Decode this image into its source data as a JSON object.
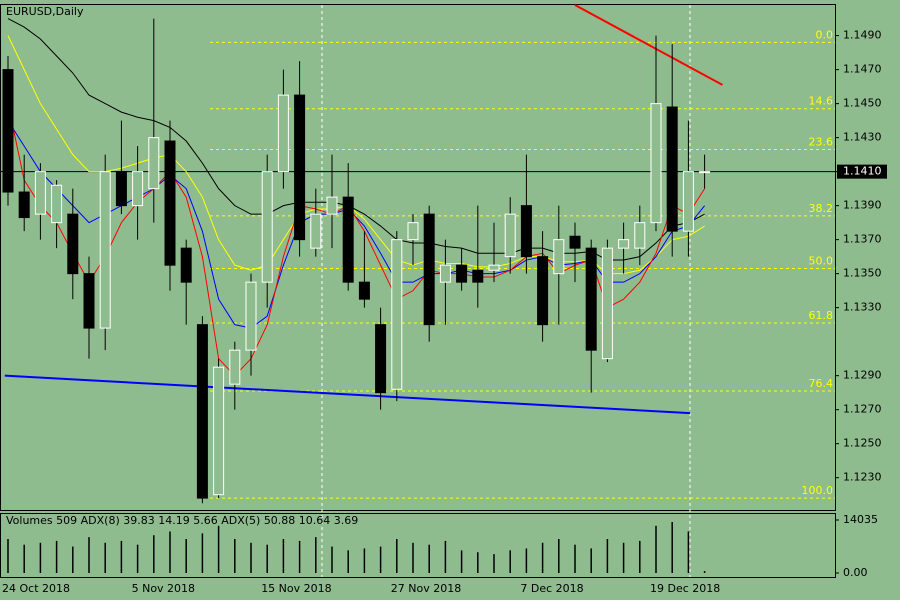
{
  "chart_data": {
    "type": "candlestick",
    "title": "EURUSD,Daily",
    "categories": [
      "24 Oct 2018",
      null,
      null,
      null,
      null,
      null,
      null,
      null,
      "5 Nov 2018",
      null,
      null,
      null,
      null,
      null,
      null,
      null,
      "15 Nov 2018",
      null,
      null,
      null,
      null,
      null,
      null,
      null,
      "27 Nov 2018",
      null,
      null,
      null,
      null,
      null,
      null,
      null,
      "7 Dec 2018",
      null,
      null,
      null,
      null,
      null,
      null,
      null,
      "19 Dec 2018",
      null,
      null,
      null
    ],
    "open": [
      1.147,
      1.1398,
      1.1385,
      1.138,
      1.1385,
      1.135,
      1.1318,
      1.141,
      1.139,
      1.14,
      1.1428,
      1.1365,
      1.132,
      1.122,
      1.1285,
      1.1305,
      1.1345,
      1.141,
      1.1455,
      1.1365,
      1.1385,
      1.1395,
      1.1345,
      1.132,
      1.1282,
      1.137,
      1.1385,
      1.1345,
      1.1355,
      1.1352,
      1.1352,
      1.136,
      1.139,
      1.136,
      1.135,
      1.1372,
      1.1365,
      1.13,
      1.1365,
      1.1365,
      1.138,
      1.1448,
      1.1375,
      1.141
    ],
    "high": [
      1.1478,
      1.142,
      1.1415,
      1.1405,
      1.14,
      1.136,
      1.142,
      1.144,
      1.1425,
      1.15,
      1.144,
      1.137,
      1.1325,
      1.13,
      1.131,
      1.135,
      1.142,
      1.147,
      1.1475,
      1.14,
      1.142,
      1.1415,
      1.1375,
      1.133,
      1.1375,
      1.1385,
      1.139,
      1.137,
      1.1365,
      1.139,
      1.138,
      1.1395,
      1.142,
      1.1375,
      1.139,
      1.138,
      1.137,
      1.137,
      1.138,
      1.139,
      1.149,
      1.1485,
      1.144,
      1.142
    ],
    "low": [
      1.139,
      1.1375,
      1.137,
      1.1365,
      1.1335,
      1.13,
      1.1305,
      1.1385,
      1.137,
      1.138,
      1.134,
      1.132,
      1.1215,
      1.1218,
      1.127,
      1.129,
      1.133,
      1.14,
      1.136,
      1.136,
      1.1365,
      1.134,
      1.133,
      1.127,
      1.1275,
      1.1355,
      1.131,
      1.132,
      1.134,
      1.133,
      1.1345,
      1.135,
      1.135,
      1.131,
      1.132,
      1.1345,
      1.128,
      1.1298,
      1.135,
      1.1355,
      1.1375,
      1.136,
      1.136,
      1.14
    ],
    "close": [
      1.1398,
      1.1383,
      1.141,
      1.1402,
      1.135,
      1.1318,
      1.141,
      1.139,
      1.141,
      1.143,
      1.1355,
      1.1345,
      1.1218,
      1.1295,
      1.1305,
      1.1345,
      1.141,
      1.1455,
      1.137,
      1.1385,
      1.1395,
      1.1345,
      1.1335,
      1.128,
      1.137,
      1.138,
      1.132,
      1.1355,
      1.1345,
      1.1345,
      1.1355,
      1.1385,
      1.136,
      1.132,
      1.137,
      1.1365,
      1.1305,
      1.1365,
      1.137,
      1.138,
      1.145,
      1.1375,
      1.141,
      1.141
    ],
    "series": [
      {
        "color": "#000000",
        "values": [
          1.15,
          1.1495,
          1.1488,
          1.1478,
          1.1468,
          1.1455,
          1.145,
          1.1445,
          1.1442,
          1.144,
          1.1436,
          1.1428,
          1.1415,
          1.14,
          1.139,
          1.1385,
          1.1385,
          1.139,
          1.1392,
          1.1392,
          1.1392,
          1.139,
          1.1385,
          1.1378,
          1.137,
          1.1368,
          1.1368,
          1.1366,
          1.1365,
          1.1362,
          1.1362,
          1.1362,
          1.1365,
          1.1365,
          1.1362,
          1.1362,
          1.1363,
          1.1358,
          1.1358,
          1.136,
          1.1368,
          1.1378,
          1.138,
          1.1385
        ]
      },
      {
        "color": "#ffff00",
        "values": [
          1.149,
          1.147,
          1.145,
          1.1435,
          1.142,
          1.141,
          1.141,
          1.1412,
          1.1415,
          1.1418,
          1.142,
          1.141,
          1.1395,
          1.137,
          1.1355,
          1.1352,
          1.1355,
          1.137,
          1.1385,
          1.1388,
          1.1388,
          1.139,
          1.1382,
          1.137,
          1.1358,
          1.1355,
          1.1358,
          1.1356,
          1.1356,
          1.1354,
          1.1354,
          1.1356,
          1.136,
          1.136,
          1.1357,
          1.1357,
          1.1358,
          1.135,
          1.135,
          1.1352,
          1.136,
          1.137,
          1.1372,
          1.1378
        ]
      },
      {
        "color": "#0000ff",
        "values": [
          1.144,
          1.1425,
          1.141,
          1.14,
          1.139,
          1.138,
          1.1385,
          1.139,
          1.1395,
          1.14,
          1.1408,
          1.14,
          1.1375,
          1.1335,
          1.132,
          1.1318,
          1.1325,
          1.1355,
          1.138,
          1.1385,
          1.1385,
          1.1388,
          1.1378,
          1.1362,
          1.1345,
          1.1345,
          1.135,
          1.135,
          1.1352,
          1.135,
          1.135,
          1.1352,
          1.1358,
          1.136,
          1.1355,
          1.1356,
          1.1358,
          1.1345,
          1.1345,
          1.135,
          1.136,
          1.1375,
          1.1378,
          1.139
        ]
      },
      {
        "color": "#ff0000",
        "values": [
          1.145,
          1.1405,
          1.139,
          1.138,
          1.1362,
          1.1345,
          1.136,
          1.138,
          1.1392,
          1.14,
          1.141,
          1.1395,
          1.136,
          1.13,
          1.129,
          1.13,
          1.132,
          1.136,
          1.139,
          1.1388,
          1.1385,
          1.139,
          1.1375,
          1.1355,
          1.1335,
          1.134,
          1.1352,
          1.135,
          1.135,
          1.1348,
          1.1348,
          1.1352,
          1.136,
          1.1362,
          1.135,
          1.1355,
          1.1358,
          1.133,
          1.1335,
          1.1345,
          1.1362,
          1.139,
          1.1385,
          1.14
        ]
      }
    ],
    "trendlines": [
      {
        "color": "#ff0000",
        "x": [
          35,
          44.1
        ],
        "values": [
          1.1508,
          1.1461
        ]
      },
      {
        "color": "#0000ff",
        "x": [
          -0.2,
          42.1
        ],
        "values": [
          1.129,
          1.1268
        ]
      }
    ],
    "fib_levels": [
      {
        "value": 1.1486,
        "label": "0.0"
      },
      {
        "value": 1.1447,
        "label": "14.6"
      },
      {
        "value": 1.1423,
        "label": "23.6"
      },
      {
        "value": 1.1384,
        "label": "38.2"
      },
      {
        "value": 1.1353,
        "label": "50.0"
      },
      {
        "value": 1.1321,
        "label": "61.8"
      },
      {
        "value": 1.1281,
        "label": "76.4"
      },
      {
        "value": 1.1218,
        "label": "100.0"
      }
    ],
    "ylim": [
      1.1211,
      1.1508
    ],
    "yticks": [
      {
        "value": 1.149,
        "label": "1.1490"
      },
      {
        "value": 1.147,
        "label": "1.1470"
      },
      {
        "value": 1.145,
        "label": "1.1450"
      },
      {
        "value": 1.143,
        "label": "1.1430"
      },
      {
        "value": 1.141,
        "label": "1.1410"
      },
      {
        "value": 1.139,
        "label": "1.1390"
      },
      {
        "value": 1.137,
        "label": "1.1370"
      },
      {
        "value": 1.135,
        "label": "1.1350"
      },
      {
        "value": 1.133,
        "label": "1.1330"
      },
      {
        "value": 1.129,
        "label": "1.1290"
      },
      {
        "value": 1.127,
        "label": "1.1270"
      },
      {
        "value": 1.125,
        "label": "1.1250"
      },
      {
        "value": 1.123,
        "label": "1.1230"
      }
    ],
    "current_price": {
      "value": 1.141,
      "label": "1.1410"
    },
    "volume_title": "Volumes 509 ADX(8) 39.83 14.19 5.66 ADX(5) 50.88 10.64 3.69",
    "volumes": [
      9000,
      7500,
      8000,
      8500,
      7000,
      9500,
      8000,
      8500,
      7500,
      10000,
      11000,
      9000,
      10500,
      12500,
      9000,
      8000,
      7500,
      9000,
      8500,
      9500,
      7000,
      6000,
      6500,
      7000,
      9000,
      8000,
      7500,
      8500,
      6000,
      5500,
      5000,
      6000,
      6500,
      8000,
      9000,
      7500,
      6500,
      9000,
      8000,
      8500,
      12500,
      13500,
      11000,
      509
    ],
    "volume_ylim": [
      0,
      14035
    ],
    "volume_yticks": [
      14035,
      {
        "value": 0,
        "label": "0.00"
      }
    ]
  }
}
